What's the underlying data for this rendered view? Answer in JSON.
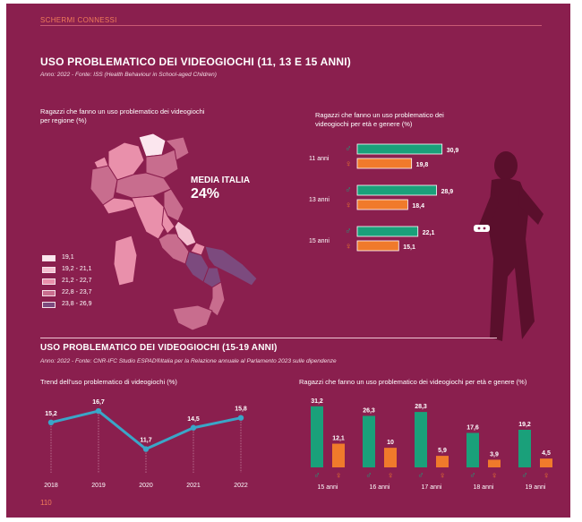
{
  "header": {
    "section_tag": "SCHERMI CONNESSI",
    "page_number": "110"
  },
  "section1": {
    "title": "USO PROBLEMATICO DEI VIDEOGIOCHI (11, 13 E 15 ANNI)",
    "source": "Anno: 2022 - Fonte: ISS (Health Behaviour in School-aged Children)",
    "map": {
      "title_line1": "Ragazzi che fanno un uso problematico dei videogiochi",
      "title_line2": "per regione (%)",
      "avg_label": "MEDIA ITALIA",
      "avg_value": "24%",
      "legend": [
        {
          "label": "19,1",
          "color": "#fbe6ee"
        },
        {
          "label": "19,2 - 21,1",
          "color": "#f4bfd0"
        },
        {
          "label": "21,2 - 22,7",
          "color": "#e990ab"
        },
        {
          "label": "22,8 - 23,7",
          "color": "#c86d8e"
        },
        {
          "label": "23,8 - 26,9",
          "color": "#7c4a7e"
        }
      ]
    },
    "bar_chart": {
      "title_line1": "Ragazzi che fanno un uso problematico dei",
      "title_line2": "videogiochi per età e genere (%)",
      "groups": [
        {
          "label": "11 anni",
          "male_value": "30,9",
          "female_value": "19,8"
        },
        {
          "label": "13 anni",
          "male_value": "28,9",
          "female_value": "18,4"
        },
        {
          "label": "15 anni",
          "male_value": "22,1",
          "female_value": "15,1"
        }
      ]
    }
  },
  "section2": {
    "title": "USO PROBLEMATICO DEI VIDEOGIOCHI (15-19 ANNI)",
    "source": "Anno: 2022 - Fonte: CNR-IFC Studio ESPAD®Italia per la Relazione annuale al Parlamento 2023 sulle dipendenze",
    "trend_title": "Trend dell'uso problematico di videogiochi (%)",
    "bars_title": "Ragazzi che fanno un uso problematico dei videogiochi per età e genere (%)"
  },
  "colors": {
    "background": "#8a1f4e",
    "male": "#1aa07a",
    "female": "#f07a2b",
    "trend_line": "#3aa6c8"
  },
  "chart_data": [
    {
      "type": "bar",
      "title": "Ragazzi che fanno un uso problematico dei videogiochi per età e genere (%)",
      "categories": [
        "11 anni",
        "13 anni",
        "15 anni"
      ],
      "series": [
        {
          "name": "♂",
          "values": [
            30.9,
            28.9,
            22.1
          ]
        },
        {
          "name": "♀",
          "values": [
            19.8,
            18.4,
            15.1
          ]
        }
      ],
      "orientation": "horizontal"
    },
    {
      "type": "line",
      "title": "Trend dell'uso problematico di videogiochi (%)",
      "x": [
        "2018",
        "2019",
        "2020",
        "2021",
        "2022"
      ],
      "values": [
        15.2,
        16.7,
        11.7,
        14.5,
        15.8
      ],
      "labels": [
        "15,2",
        "16,7",
        "11,7",
        "14,5",
        "15,8"
      ]
    },
    {
      "type": "bar",
      "title": "Ragazzi che fanno un uso problematico dei videogiochi per età e genere (%)",
      "categories": [
        "15 anni",
        "16 anni",
        "17 anni",
        "18 anni",
        "19 anni"
      ],
      "series": [
        {
          "name": "♂",
          "values": [
            31.2,
            26.3,
            28.3,
            17.6,
            19.2
          ],
          "labels": [
            "31,2",
            "26,3",
            "28,3",
            "17,6",
            "19,2"
          ]
        },
        {
          "name": "♀",
          "values": [
            12.1,
            10,
            5.9,
            3.9,
            4.5
          ],
          "labels": [
            "12,1",
            "10",
            "5,9",
            "3,9",
            "4,5"
          ]
        }
      ]
    }
  ]
}
